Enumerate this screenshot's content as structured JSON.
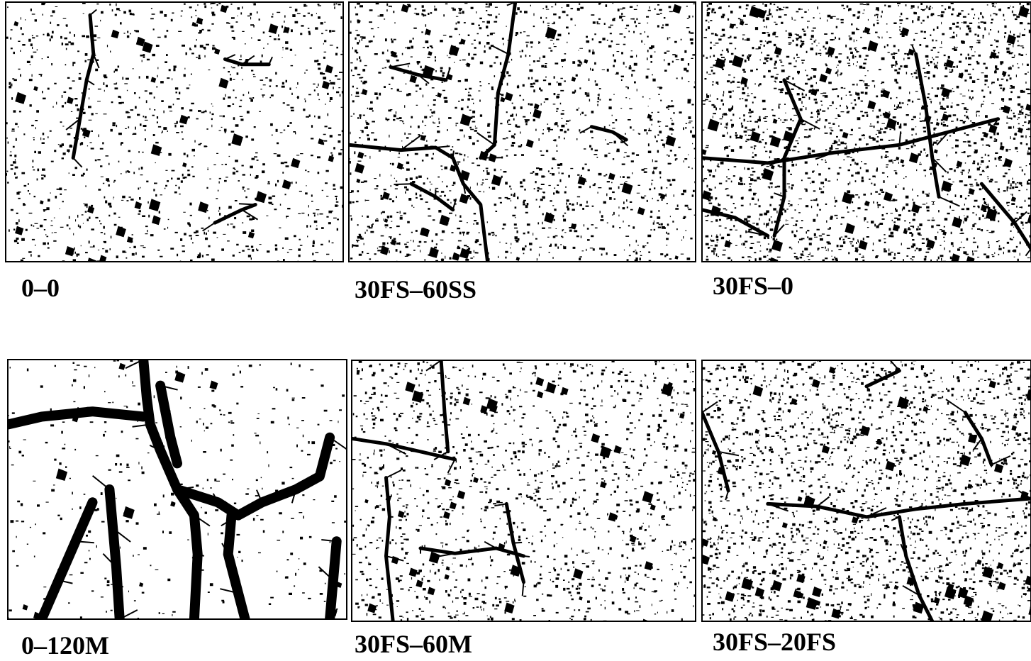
{
  "panels": [
    {
      "label": "0–0"
    },
    {
      "label": "30FS–60SS"
    },
    {
      "label": "30FS–0"
    },
    {
      "label": "0–120M"
    },
    {
      "label": "30FS–60M"
    },
    {
      "label": "30FS–20FS"
    }
  ]
}
